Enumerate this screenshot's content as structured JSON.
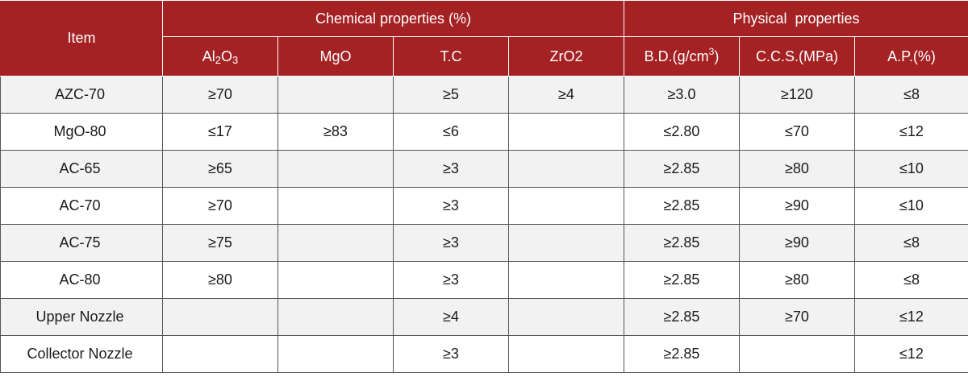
{
  "header": {
    "item": "Item",
    "chemical": "Chemical properties (%)",
    "physical": "Physical  properties",
    "al2o3": {
      "a": "Al",
      "b": "2",
      "c": "O",
      "d": "3"
    },
    "mgo": "MgO",
    "tc": "T.C",
    "zro2": "ZrO2",
    "bd": {
      "main": "B.D.(g/cm",
      "sup": "3",
      "end": ")"
    },
    "ccs": "C.C.S.(MPa)",
    "ap": "A.P.(%)"
  },
  "rows": [
    {
      "item": "AZC-70",
      "al2o3": "≥70",
      "mgo": "",
      "tc": "≥5",
      "zro2": "≥4",
      "bd": "≥3.0",
      "ccs": "≥120",
      "ap": "≤8"
    },
    {
      "item": "MgO-80",
      "al2o3": "≤17",
      "mgo": "≥83",
      "tc": "≤6",
      "zro2": "",
      "bd": "≤2.80",
      "ccs": "≤70",
      "ap": "≤12"
    },
    {
      "item": "AC-65",
      "al2o3": "≥65",
      "mgo": "",
      "tc": "≥3",
      "zro2": "",
      "bd": "≥2.85",
      "ccs": "≥80",
      "ap": "≤10"
    },
    {
      "item": "AC-70",
      "al2o3": "≥70",
      "mgo": "",
      "tc": "≥3",
      "zro2": "",
      "bd": "≥2.85",
      "ccs": "≥90",
      "ap": "≤10"
    },
    {
      "item": "AC-75",
      "al2o3": "≥75",
      "mgo": "",
      "tc": "≥3",
      "zro2": "",
      "bd": "≥2.85",
      "ccs": "≥90",
      "ap": "≤8"
    },
    {
      "item": "AC-80",
      "al2o3": "≥80",
      "mgo": "",
      "tc": "≥3",
      "zro2": "",
      "bd": "≥2.85",
      "ccs": "≥80",
      "ap": "≤8"
    },
    {
      "item": "Upper Nozzle",
      "al2o3": "",
      "mgo": "",
      "tc": "≥4",
      "zro2": "",
      "bd": "≥2.85",
      "ccs": "≥70",
      "ap": "≤12"
    },
    {
      "item": "Collector Nozzle",
      "al2o3": "",
      "mgo": "",
      "tc": "≥3",
      "zro2": "",
      "bd": "≥2.85",
      "ccs": "",
      "ap": "≤12"
    }
  ]
}
